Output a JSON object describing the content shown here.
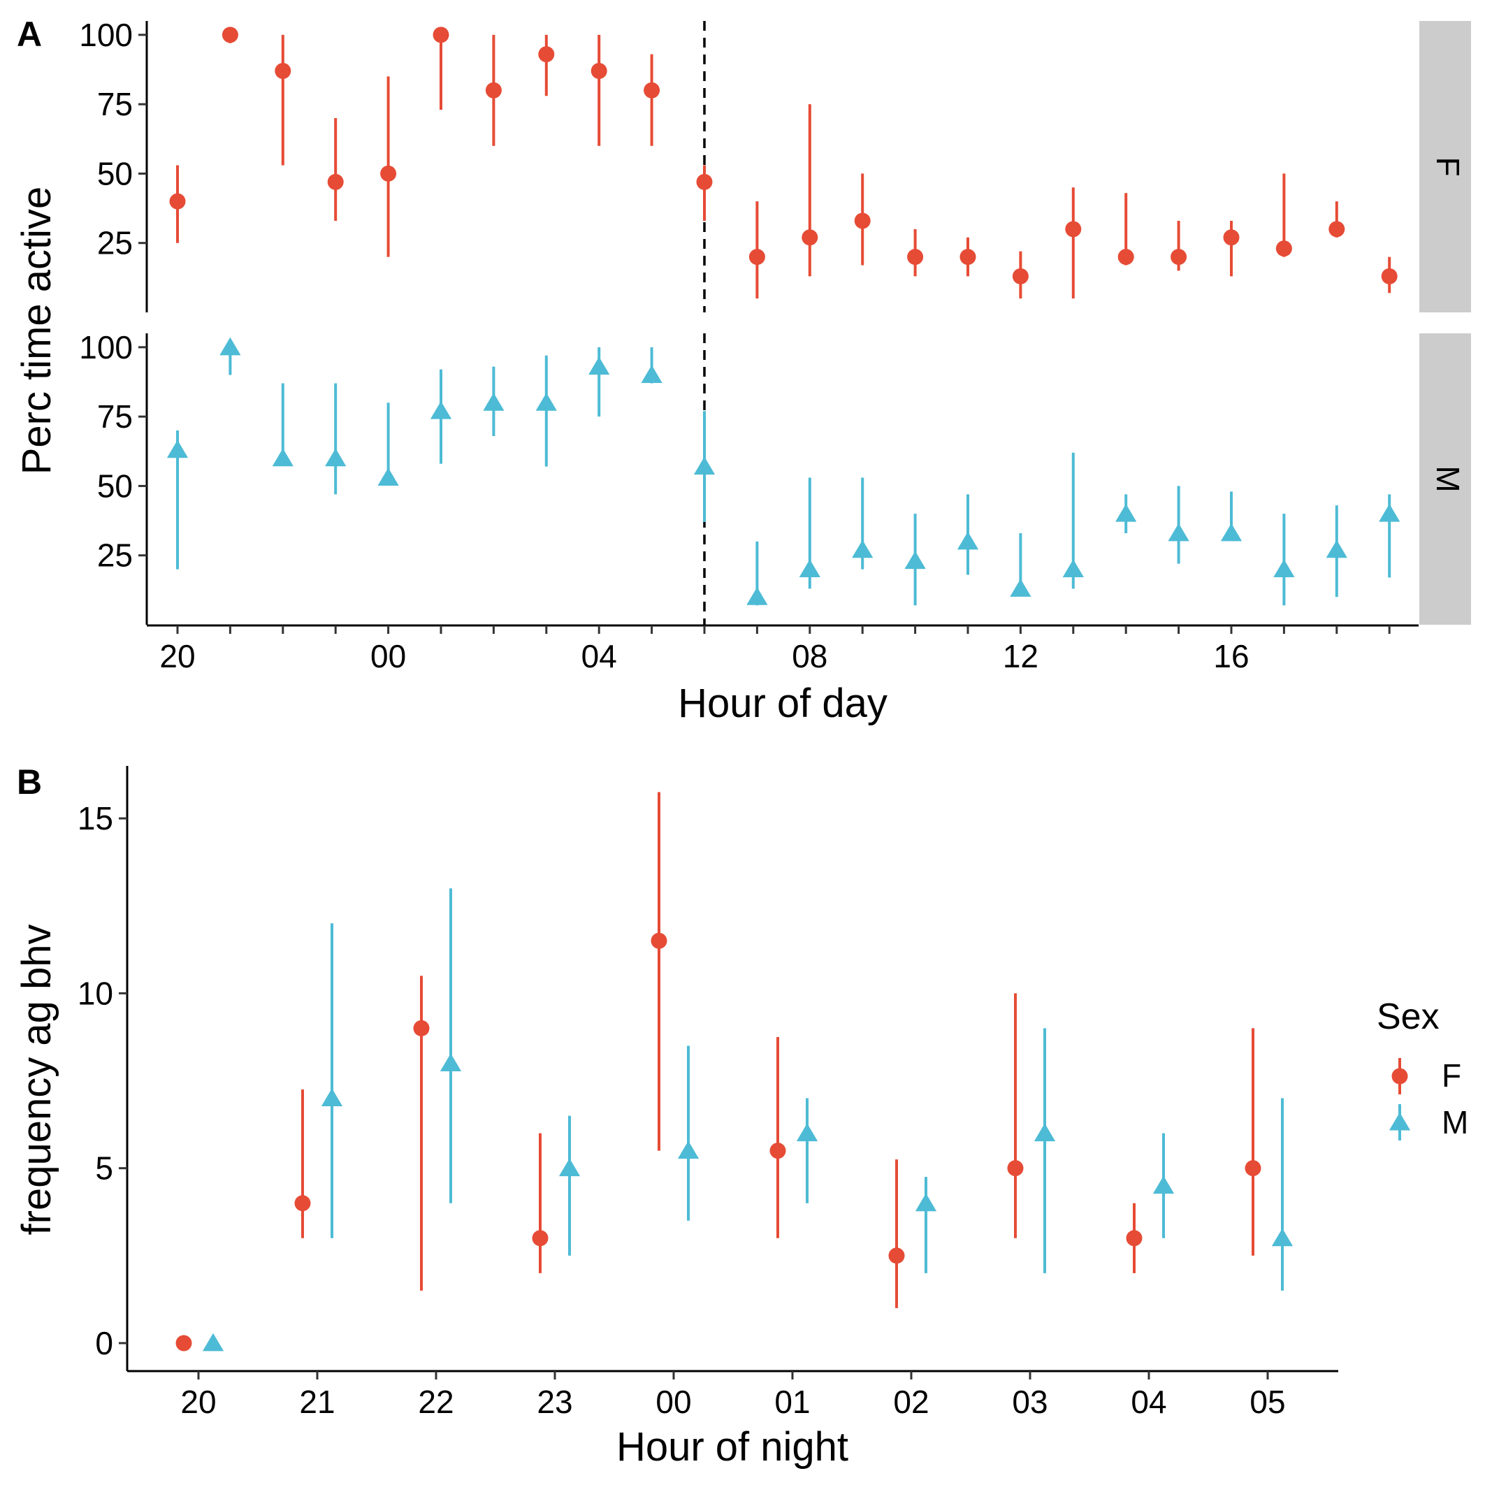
{
  "colors": {
    "F": "#E64B35",
    "M": "#4DBBD5",
    "strip": "#CCCCCC"
  },
  "chart_data": [
    {
      "panel": "A",
      "type": "scatter",
      "geom": "pointrange",
      "xlabel": "Hour of day",
      "ylabel": "Perc time active",
      "x_categories": [
        "20",
        "21",
        "22",
        "23",
        "00",
        "01",
        "02",
        "03",
        "04",
        "05",
        "06",
        "07",
        "08",
        "09",
        "10",
        "11",
        "12",
        "13",
        "14",
        "15",
        "16",
        "17",
        "18",
        "19"
      ],
      "x_tick_labels": [
        "20",
        "",
        "",
        "",
        "00",
        "",
        "",
        "",
        "04",
        "",
        "",
        "",
        "08",
        "",
        "",
        "",
        "12",
        "",
        "",
        "",
        "16",
        "",
        "",
        ""
      ],
      "y_ticks": [
        25,
        50,
        75,
        100
      ],
      "ylim": [
        0,
        105
      ],
      "vline_at": "06",
      "vline_style": "dashed",
      "facets": [
        {
          "strip": "F",
          "series": "F",
          "points": [
            {
              "x": "20",
              "y": 40,
              "lo": 25,
              "hi": 53
            },
            {
              "x": "21",
              "y": 100,
              "lo": 97,
              "hi": 100
            },
            {
              "x": "22",
              "y": 87,
              "lo": 53,
              "hi": 100
            },
            {
              "x": "23",
              "y": 47,
              "lo": 33,
              "hi": 70
            },
            {
              "x": "00",
              "y": 50,
              "lo": 20,
              "hi": 85
            },
            {
              "x": "01",
              "y": 100,
              "lo": 73,
              "hi": 100
            },
            {
              "x": "02",
              "y": 80,
              "lo": 60,
              "hi": 100
            },
            {
              "x": "03",
              "y": 93,
              "lo": 78,
              "hi": 100
            },
            {
              "x": "04",
              "y": 87,
              "lo": 60,
              "hi": 100
            },
            {
              "x": "05",
              "y": 80,
              "lo": 60,
              "hi": 93
            },
            {
              "x": "06",
              "y": 47,
              "lo": 33,
              "hi": 53
            },
            {
              "x": "07",
              "y": 20,
              "lo": 5,
              "hi": 40
            },
            {
              "x": "08",
              "y": 27,
              "lo": 13,
              "hi": 75
            },
            {
              "x": "09",
              "y": 33,
              "lo": 17,
              "hi": 50
            },
            {
              "x": "10",
              "y": 20,
              "lo": 13,
              "hi": 30
            },
            {
              "x": "11",
              "y": 20,
              "lo": 13,
              "hi": 27
            },
            {
              "x": "12",
              "y": 13,
              "lo": 5,
              "hi": 22
            },
            {
              "x": "13",
              "y": 30,
              "lo": 5,
              "hi": 45
            },
            {
              "x": "14",
              "y": 20,
              "lo": 17,
              "hi": 43
            },
            {
              "x": "15",
              "y": 20,
              "lo": 15,
              "hi": 33
            },
            {
              "x": "16",
              "y": 27,
              "lo": 13,
              "hi": 33
            },
            {
              "x": "17",
              "y": 23,
              "lo": 20,
              "hi": 50
            },
            {
              "x": "18",
              "y": 30,
              "lo": 27,
              "hi": 40
            },
            {
              "x": "19",
              "y": 13,
              "lo": 7,
              "hi": 20
            }
          ]
        },
        {
          "strip": "M",
          "series": "M",
          "points": [
            {
              "x": "20",
              "y": 63,
              "lo": 20,
              "hi": 70
            },
            {
              "x": "21",
              "y": 100,
              "lo": 90,
              "hi": 100
            },
            {
              "x": "22",
              "y": 60,
              "lo": 60,
              "hi": 87
            },
            {
              "x": "23",
              "y": 60,
              "lo": 47,
              "hi": 87
            },
            {
              "x": "00",
              "y": 53,
              "lo": 53,
              "hi": 80
            },
            {
              "x": "01",
              "y": 77,
              "lo": 58,
              "hi": 92
            },
            {
              "x": "02",
              "y": 80,
              "lo": 68,
              "hi": 93
            },
            {
              "x": "03",
              "y": 80,
              "lo": 57,
              "hi": 97
            },
            {
              "x": "04",
              "y": 93,
              "lo": 75,
              "hi": 100
            },
            {
              "x": "05",
              "y": 90,
              "lo": 87,
              "hi": 100
            },
            {
              "x": "06",
              "y": 57,
              "lo": 37,
              "hi": 77
            },
            {
              "x": "07",
              "y": 10,
              "lo": 7,
              "hi": 30
            },
            {
              "x": "08",
              "y": 20,
              "lo": 13,
              "hi": 53
            },
            {
              "x": "09",
              "y": 27,
              "lo": 20,
              "hi": 53
            },
            {
              "x": "10",
              "y": 23,
              "lo": 7,
              "hi": 40
            },
            {
              "x": "11",
              "y": 30,
              "lo": 18,
              "hi": 47
            },
            {
              "x": "12",
              "y": 13,
              "lo": 13,
              "hi": 33
            },
            {
              "x": "13",
              "y": 20,
              "lo": 13,
              "hi": 62
            },
            {
              "x": "14",
              "y": 40,
              "lo": 33,
              "hi": 47
            },
            {
              "x": "15",
              "y": 33,
              "lo": 22,
              "hi": 50
            },
            {
              "x": "16",
              "y": 33,
              "lo": 33,
              "hi": 48
            },
            {
              "x": "17",
              "y": 20,
              "lo": 7,
              "hi": 40
            },
            {
              "x": "18",
              "y": 27,
              "lo": 10,
              "hi": 43
            },
            {
              "x": "19",
              "y": 40,
              "lo": 17,
              "hi": 47
            }
          ]
        }
      ]
    },
    {
      "panel": "B",
      "type": "scatter",
      "geom": "pointrange",
      "xlabel": "Hour of night",
      "ylabel": "frequency ag bhv",
      "categories": [
        "20",
        "21",
        "22",
        "23",
        "00",
        "01",
        "02",
        "03",
        "04",
        "05"
      ],
      "y_ticks": [
        0,
        5,
        10,
        15
      ],
      "ylim": [
        -0.8,
        16.5
      ],
      "dodge": true,
      "legend": {
        "title": "Sex",
        "position": "right",
        "entries": [
          "F",
          "M"
        ]
      },
      "series": [
        {
          "name": "F",
          "points": [
            {
              "x": "20",
              "y": 0,
              "lo": 0,
              "hi": 0
            },
            {
              "x": "21",
              "y": 4,
              "lo": 3,
              "hi": 7.25
            },
            {
              "x": "22",
              "y": 9,
              "lo": 1.5,
              "hi": 10.5
            },
            {
              "x": "23",
              "y": 3,
              "lo": 2,
              "hi": 6
            },
            {
              "x": "00",
              "y": 11.5,
              "lo": 5.5,
              "hi": 15.75
            },
            {
              "x": "01",
              "y": 5.5,
              "lo": 3,
              "hi": 8.75
            },
            {
              "x": "02",
              "y": 2.5,
              "lo": 1,
              "hi": 5.25
            },
            {
              "x": "03",
              "y": 5,
              "lo": 3,
              "hi": 10
            },
            {
              "x": "04",
              "y": 3,
              "lo": 2,
              "hi": 4
            },
            {
              "x": "05",
              "y": 5,
              "lo": 2.5,
              "hi": 9
            }
          ]
        },
        {
          "name": "M",
          "points": [
            {
              "x": "20",
              "y": 0,
              "lo": 0,
              "hi": 0
            },
            {
              "x": "21",
              "y": 7,
              "lo": 3,
              "hi": 12
            },
            {
              "x": "22",
              "y": 8,
              "lo": 4,
              "hi": 13
            },
            {
              "x": "23",
              "y": 5,
              "lo": 2.5,
              "hi": 6.5
            },
            {
              "x": "00",
              "y": 5.5,
              "lo": 3.5,
              "hi": 8.5
            },
            {
              "x": "01",
              "y": 6,
              "lo": 4,
              "hi": 7
            },
            {
              "x": "02",
              "y": 4,
              "lo": 2,
              "hi": 4.75
            },
            {
              "x": "03",
              "y": 6,
              "lo": 2,
              "hi": 9
            },
            {
              "x": "04",
              "y": 4.5,
              "lo": 3,
              "hi": 6
            },
            {
              "x": "05",
              "y": 3,
              "lo": 1.5,
              "hi": 7
            }
          ]
        }
      ]
    }
  ]
}
